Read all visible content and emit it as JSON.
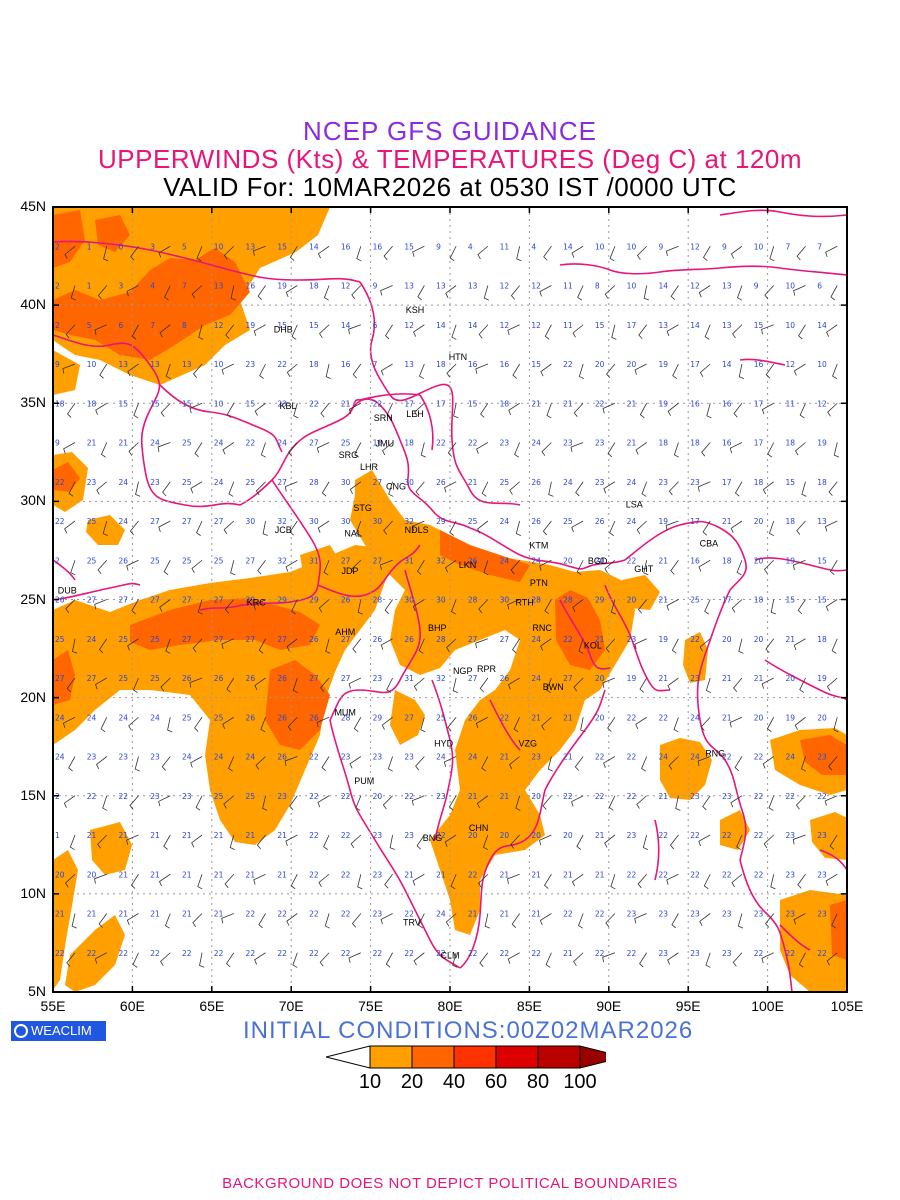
{
  "titles": {
    "line1": "NCEP GFS GUIDANCE",
    "line2": "UPPERWINDS (Kts) & TEMPERATURES (Deg C) at 120m",
    "line3": "VALID For: 10MAR2026 at 0530 IST /0000 UTC"
  },
  "axes": {
    "lat_labels": [
      "45N",
      "40N",
      "35N",
      "30N",
      "25N",
      "20N",
      "15N",
      "10N",
      "5N"
    ],
    "lon_labels": [
      "55E",
      "60E",
      "65E",
      "70E",
      "75E",
      "80E",
      "85E",
      "90E",
      "95E",
      "100E",
      "105E"
    ]
  },
  "stations": [
    {
      "code": "KSH",
      "lon": 77.8,
      "lat": 39.6
    },
    {
      "code": "DHB",
      "lon": 69.5,
      "lat": 38.6
    },
    {
      "code": "HTN",
      "lon": 80.5,
      "lat": 37.2
    },
    {
      "code": "KBL",
      "lon": 69.8,
      "lat": 34.7
    },
    {
      "code": "LEH",
      "lon": 77.8,
      "lat": 34.3
    },
    {
      "code": "SRN",
      "lon": 75.8,
      "lat": 34.1
    },
    {
      "code": "JMU",
      "lon": 75.9,
      "lat": 32.8
    },
    {
      "code": "SRG",
      "lon": 73.6,
      "lat": 32.2
    },
    {
      "code": "LHR",
      "lon": 74.9,
      "lat": 31.6
    },
    {
      "code": "CNG",
      "lon": 76.6,
      "lat": 30.6
    },
    {
      "code": "LSA",
      "lon": 91.6,
      "lat": 29.7
    },
    {
      "code": "STG",
      "lon": 74.5,
      "lat": 29.5
    },
    {
      "code": "JCB",
      "lon": 69.5,
      "lat": 28.4
    },
    {
      "code": "NAL",
      "lon": 73.9,
      "lat": 28.2
    },
    {
      "code": "NDLS",
      "lon": 77.9,
      "lat": 28.4
    },
    {
      "code": "KTM",
      "lon": 85.6,
      "lat": 27.6
    },
    {
      "code": "CBA",
      "lon": 96.3,
      "lat": 27.7
    },
    {
      "code": "BGD",
      "lon": 89.3,
      "lat": 26.8
    },
    {
      "code": "GHT",
      "lon": 92.2,
      "lat": 26.4
    },
    {
      "code": "JDP",
      "lon": 73.7,
      "lat": 26.3
    },
    {
      "code": "LKN",
      "lon": 81.1,
      "lat": 26.6
    },
    {
      "code": "PTN",
      "lon": 85.6,
      "lat": 25.7
    },
    {
      "code": "DUB",
      "lon": 55.9,
      "lat": 25.3
    },
    {
      "code": "KRC",
      "lon": 67.8,
      "lat": 24.7
    },
    {
      "code": "RTH",
      "lon": 84.7,
      "lat": 24.7
    },
    {
      "code": "AHM",
      "lon": 73.4,
      "lat": 23.2
    },
    {
      "code": "BHP",
      "lon": 79.2,
      "lat": 23.4
    },
    {
      "code": "RNC",
      "lon": 85.8,
      "lat": 23.4
    },
    {
      "code": "KOL",
      "lon": 89.0,
      "lat": 22.5
    },
    {
      "code": "NGP",
      "lon": 80.8,
      "lat": 21.2
    },
    {
      "code": "RPR",
      "lon": 82.3,
      "lat": 21.3
    },
    {
      "code": "BWN",
      "lon": 86.5,
      "lat": 20.4
    },
    {
      "code": "MUM",
      "lon": 73.4,
      "lat": 19.1
    },
    {
      "code": "HYD",
      "lon": 79.6,
      "lat": 17.5
    },
    {
      "code": "VZG",
      "lon": 84.9,
      "lat": 17.5
    },
    {
      "code": "RNG",
      "lon": 96.7,
      "lat": 17.0
    },
    {
      "code": "PUM",
      "lon": 74.6,
      "lat": 15.6
    },
    {
      "code": "CHN",
      "lon": 81.8,
      "lat": 13.2
    },
    {
      "code": "BNG",
      "lon": 78.9,
      "lat": 12.7
    },
    {
      "code": "TRV",
      "lon": 77.6,
      "lat": 8.4
    },
    {
      "code": "CLM",
      "lon": 80.0,
      "lat": 6.7
    }
  ],
  "temperature_rows": [
    {
      "lat": 43,
      "values": [
        "2",
        "1",
        "0",
        "3",
        "5",
        "10",
        "13",
        "15",
        "14",
        "16",
        "16",
        "15",
        "9",
        "4",
        "11",
        "4",
        "14",
        "10",
        "10",
        "9",
        "12",
        "9",
        "10",
        "7",
        "7"
      ]
    },
    {
      "lat": 41,
      "values": [
        "2",
        "1",
        "3",
        "4",
        "7",
        "13",
        "16",
        "19",
        "18",
        "12",
        "9",
        "13",
        "13",
        "13",
        "12",
        "12",
        "11",
        "8",
        "10",
        "14",
        "12",
        "13",
        "9",
        "10",
        "6"
      ]
    },
    {
      "lat": 39,
      "values": [
        "2",
        "5",
        "6",
        "7",
        "8",
        "12",
        "19",
        "15",
        "15",
        "14",
        "6",
        "12",
        "14",
        "14",
        "12",
        "12",
        "11",
        "15",
        "17",
        "13",
        "14",
        "13",
        "15",
        "10",
        "14"
      ]
    },
    {
      "lat": 37,
      "values": [
        "9",
        "10",
        "13",
        "13",
        "13",
        "10",
        "23",
        "22",
        "18",
        "16",
        "7",
        "13",
        "18",
        "16",
        "16",
        "15",
        "22",
        "20",
        "20",
        "19",
        "17",
        "14",
        "16",
        "12",
        "10"
      ]
    },
    {
      "lat": 35,
      "values": [
        "18",
        "18",
        "15",
        "15",
        "15",
        "10",
        "15",
        "23",
        "22",
        "21",
        "22",
        "17",
        "17",
        "15",
        "18",
        "21",
        "21",
        "22",
        "21",
        "19",
        "16",
        "16",
        "17",
        "11",
        "12"
      ]
    },
    {
      "lat": 33,
      "values": [
        "9",
        "21",
        "21",
        "24",
        "25",
        "24",
        "22",
        "24",
        "27",
        "25",
        "16",
        "18",
        "22",
        "22",
        "23",
        "24",
        "23",
        "23",
        "21",
        "18",
        "18",
        "16",
        "17",
        "18",
        "19"
      ]
    },
    {
      "lat": 31,
      "values": [
        "22",
        "23",
        "24",
        "23",
        "25",
        "24",
        "25",
        "27",
        "28",
        "30",
        "27",
        "30",
        "26",
        "21",
        "25",
        "26",
        "24",
        "23",
        "24",
        "23",
        "23",
        "17",
        "18",
        "15",
        "18"
      ]
    },
    {
      "lat": 29,
      "values": [
        "22",
        "25",
        "24",
        "27",
        "27",
        "27",
        "30",
        "32",
        "30",
        "30",
        "30",
        "32",
        "29",
        "25",
        "24",
        "26",
        "25",
        "26",
        "24",
        "19",
        "17",
        "21",
        "20",
        "18",
        "13"
      ]
    },
    {
      "lat": 27,
      "values": [
        "2",
        "25",
        "26",
        "25",
        "25",
        "25",
        "27",
        "32",
        "31",
        "27",
        "27",
        "31",
        "32",
        "26",
        "24",
        "24",
        "20",
        "20",
        "22",
        "21",
        "16",
        "18",
        "20",
        "19",
        "15"
      ]
    },
    {
      "lat": 25,
      "values": [
        "26",
        "27",
        "27",
        "27",
        "27",
        "27",
        "29",
        "29",
        "29",
        "26",
        "28",
        "30",
        "30",
        "28",
        "30",
        "28",
        "28",
        "29",
        "20",
        "21",
        "25",
        "17",
        "18",
        "15",
        "15"
      ]
    },
    {
      "lat": 23,
      "values": [
        "25",
        "24",
        "25",
        "25",
        "27",
        "27",
        "27",
        "27",
        "26",
        "27",
        "26",
        "26",
        "28",
        "27",
        "27",
        "24",
        "22",
        "21",
        "23",
        "19",
        "22",
        "20",
        "20",
        "21",
        "18"
      ]
    },
    {
      "lat": 21,
      "values": [
        "27",
        "27",
        "25",
        "25",
        "26",
        "26",
        "26",
        "26",
        "27",
        "27",
        "23",
        "31",
        "32",
        "27",
        "26",
        "24",
        "27",
        "20",
        "19",
        "21",
        "23",
        "21",
        "21",
        "20",
        "19"
      ]
    },
    {
      "lat": 19,
      "values": [
        "24",
        "24",
        "24",
        "24",
        "25",
        "25",
        "26",
        "26",
        "26",
        "28",
        "29",
        "27",
        "25",
        "26",
        "22",
        "21",
        "21",
        "20",
        "22",
        "22",
        "24",
        "21",
        "20",
        "19",
        "20"
      ]
    },
    {
      "lat": 17,
      "values": [
        "24",
        "23",
        "23",
        "23",
        "24",
        "24",
        "24",
        "26",
        "22",
        "23",
        "23",
        "23",
        "24",
        "24",
        "21",
        "23",
        "21",
        "22",
        "22",
        "24",
        "24",
        "22",
        "22",
        "24",
        "23"
      ]
    },
    {
      "lat": 15,
      "values": [
        "2",
        "22",
        "22",
        "23",
        "23",
        "25",
        "25",
        "23",
        "22",
        "22",
        "20",
        "22",
        "23",
        "21",
        "21",
        "20",
        "22",
        "22",
        "22",
        "21",
        "23",
        "23",
        "22",
        "22",
        "22"
      ]
    },
    {
      "lat": 13,
      "values": [
        "1",
        "21",
        "21",
        "21",
        "21",
        "21",
        "21",
        "21",
        "22",
        "22",
        "23",
        "23",
        "22",
        "20",
        "20",
        "20",
        "20",
        "21",
        "23",
        "22",
        "22",
        "22",
        "22",
        "23",
        "23"
      ]
    },
    {
      "lat": 11,
      "values": [
        "20",
        "20",
        "21",
        "21",
        "21",
        "21",
        "21",
        "21",
        "22",
        "22",
        "23",
        "21",
        "21",
        "22",
        "21",
        "21",
        "21",
        "21",
        "22",
        "22",
        "22",
        "22",
        "22",
        "23",
        "23"
      ]
    },
    {
      "lat": 9,
      "values": [
        "21",
        "21",
        "21",
        "21",
        "21",
        "21",
        "22",
        "22",
        "22",
        "22",
        "23",
        "22",
        "24",
        "21",
        "21",
        "21",
        "22",
        "22",
        "23",
        "23",
        "23",
        "23",
        "23",
        "23",
        "23"
      ]
    },
    {
      "lat": 7,
      "values": [
        "22",
        "22",
        "22",
        "22",
        "22",
        "22",
        "22",
        "22",
        "22",
        "22",
        "22",
        "22",
        "22",
        "22",
        "22",
        "22",
        "21",
        "22",
        "22",
        "23",
        "23",
        "23",
        "22",
        "22",
        "22"
      ]
    }
  ],
  "colorbar": {
    "labels": [
      "10",
      "20",
      "40",
      "60",
      "80",
      "100"
    ],
    "colors": [
      "#ffa000",
      "#ff6600",
      "#ff3300",
      "#dd0000",
      "#bb0000",
      "#990000"
    ]
  },
  "colors": {
    "shade_light": "#ffa000",
    "shade_dark": "#ff6600",
    "boundary": "#e8157a",
    "temp_text": "#2b45d8"
  },
  "init_text": "INITIAL CONDITIONS:00Z02MAR2026",
  "logo_text": "WEACLIM",
  "footer": "BACKGROUND DOES NOT DEPICT POLITICAL BOUNDARIES"
}
